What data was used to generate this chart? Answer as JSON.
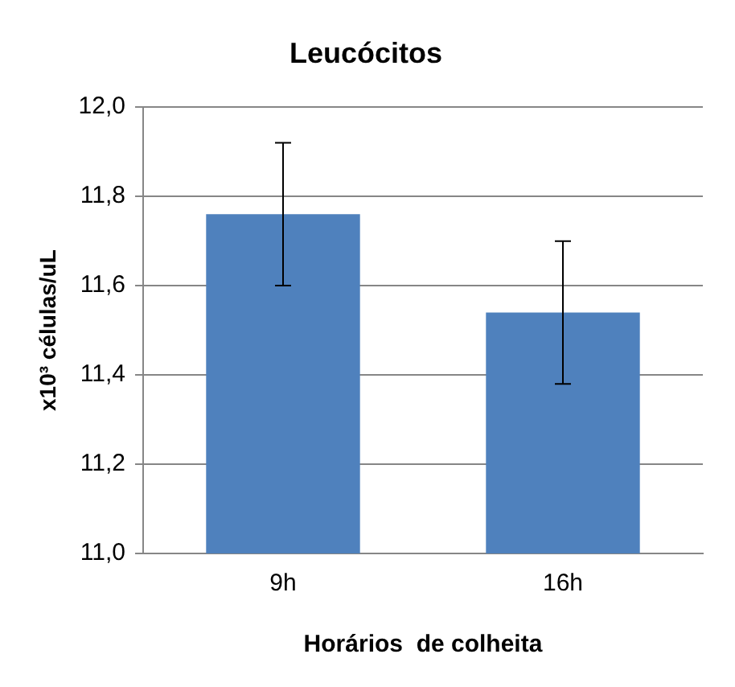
{
  "chart_data": {
    "type": "bar",
    "title": "Leucócitos",
    "xlabel": "Horários  de colheita",
    "ylabel": "x10³ células/uL",
    "categories": [
      "9h",
      "16h"
    ],
    "values": [
      11.76,
      11.54
    ],
    "errors": [
      0.16,
      0.16
    ],
    "color": "#4f81bd",
    "ylim": [
      11.0,
      12.0
    ],
    "yticks": [
      {
        "value": 11.0,
        "label": "11,0"
      },
      {
        "value": 11.2,
        "label": "11,2"
      },
      {
        "value": 11.4,
        "label": "11,4"
      },
      {
        "value": 11.6,
        "label": "11,6"
      },
      {
        "value": 11.8,
        "label": "11,8"
      },
      {
        "value": 12.0,
        "label": "12,0"
      }
    ],
    "grid": "y",
    "legend": false
  }
}
